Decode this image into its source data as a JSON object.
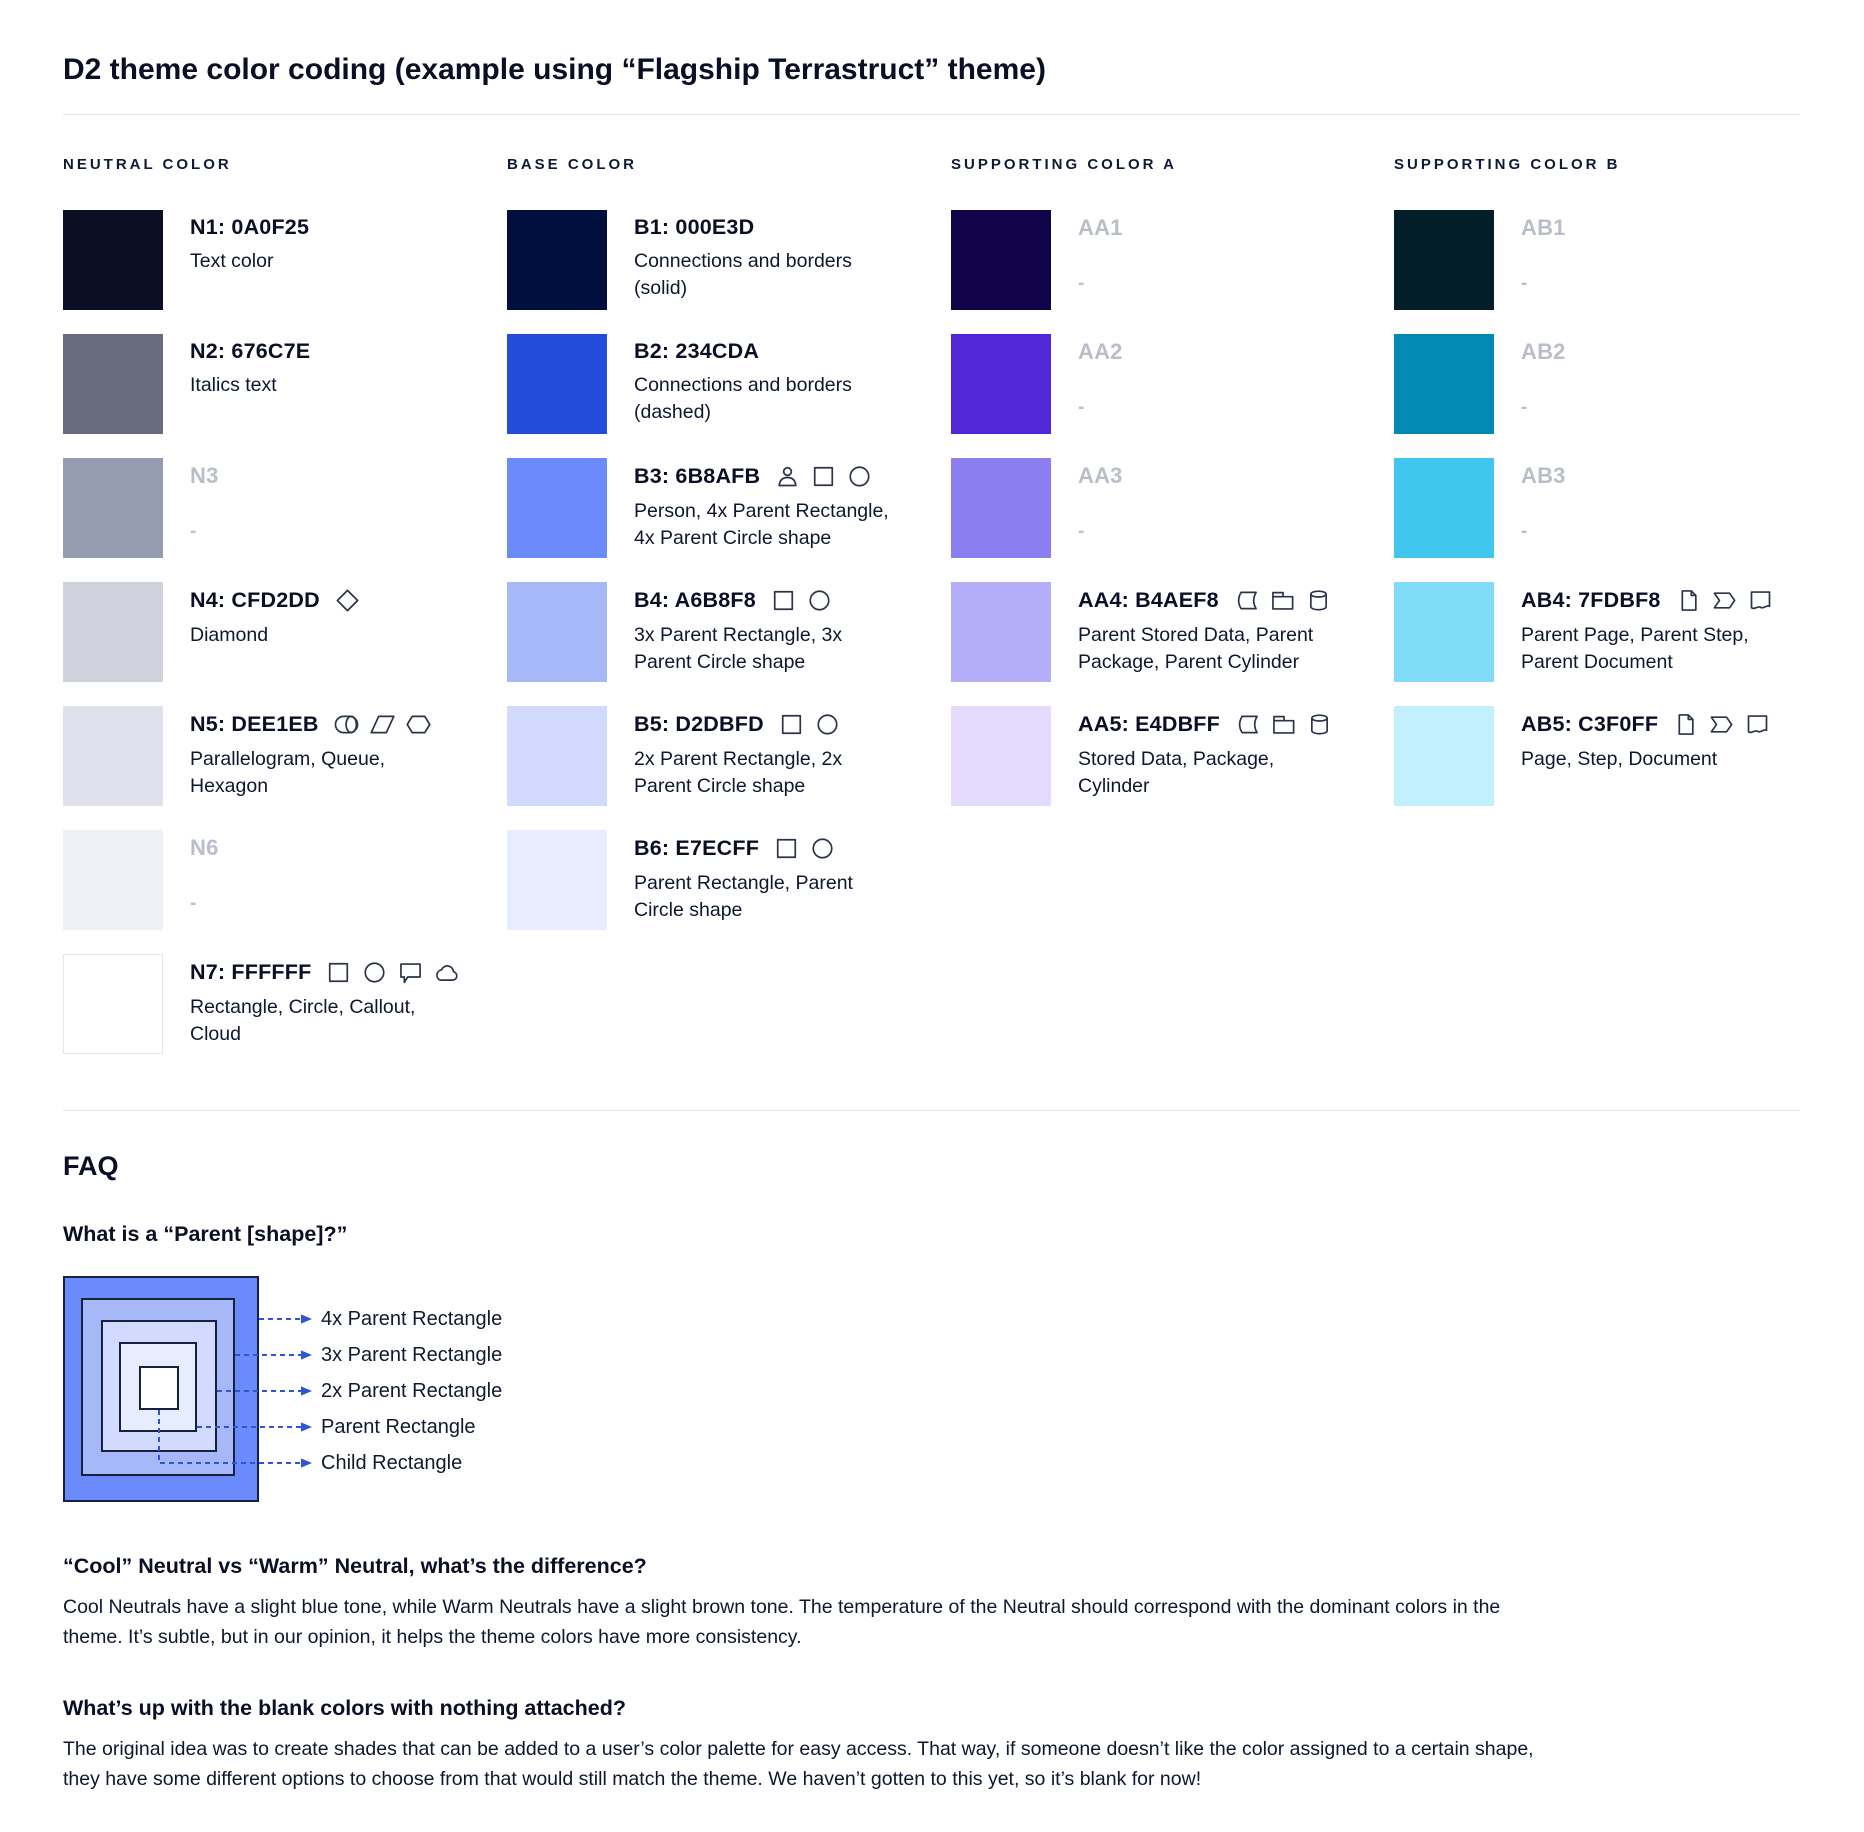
{
  "title": "D2 theme color coding (example using “Flagship Terrastruct” theme)",
  "columns": [
    {
      "header": "NEUTRAL COLOR",
      "rows": [
        {
          "label": "N1: 0A0F25",
          "color": "#0A0F25",
          "desc": "Text color",
          "icons": [],
          "blank": false,
          "bordered": false
        },
        {
          "label": "N2: 676C7E",
          "color": "#676C7E",
          "desc": "Italics text",
          "icons": [],
          "blank": false,
          "bordered": false
        },
        {
          "label": "N3",
          "color": "#969CAF",
          "desc": "-",
          "icons": [],
          "blank": true,
          "bordered": false
        },
        {
          "label": "N4: CFD2DD",
          "color": "#CFD2DD",
          "desc": "Diamond",
          "icons": [
            "diamond"
          ],
          "blank": false,
          "bordered": false
        },
        {
          "label": "N5: DEE1EB",
          "color": "#DEE1EB",
          "desc": "Parallelogram, Queue, Hexagon",
          "icons": [
            "queue",
            "parallelogram",
            "hexagon"
          ],
          "blank": false,
          "bordered": false
        },
        {
          "label": "N6",
          "color": "#EDF0F7",
          "desc": "-",
          "icons": [],
          "blank": true,
          "bordered": false
        },
        {
          "label": "N7: FFFFFF",
          "color": "#FFFFFF",
          "desc": "Rectangle, Circle, Callout, Cloud",
          "icons": [
            "rectangle",
            "circle",
            "callout",
            "cloud"
          ],
          "blank": false,
          "bordered": true
        }
      ]
    },
    {
      "header": "BASE COLOR",
      "rows": [
        {
          "label": "B1: 000E3D",
          "color": "#000E3D",
          "desc": "Connections and borders (solid)",
          "icons": [],
          "blank": false,
          "bordered": false
        },
        {
          "label": "B2: 234CDA",
          "color": "#234CDA",
          "desc": "Connections and borders (dashed)",
          "icons": [],
          "blank": false,
          "bordered": false
        },
        {
          "label": "B3: 6B8AFB",
          "color": "#6B8AFB",
          "desc": "Person, 4x Parent Rectangle, 4x Parent Circle shape",
          "icons": [
            "person",
            "rectangle",
            "circle"
          ],
          "blank": false,
          "bordered": false
        },
        {
          "label": "B4: A6B8F8",
          "color": "#A6B8F8",
          "desc": "3x Parent Rectangle, 3x Parent Circle shape",
          "icons": [
            "rectangle",
            "circle"
          ],
          "blank": false,
          "bordered": false
        },
        {
          "label": "B5: D2DBFD",
          "color": "#D2DBFD",
          "desc": "2x Parent Rectangle, 2x Parent Circle shape",
          "icons": [
            "rectangle",
            "circle"
          ],
          "blank": false,
          "bordered": false
        },
        {
          "label": "B6: E7ECFF",
          "color": "#E7ECFF",
          "desc": "Parent Rectangle, Parent Circle shape",
          "icons": [
            "rectangle",
            "circle"
          ],
          "blank": false,
          "bordered": false
        }
      ]
    },
    {
      "header": "SUPPORTING COLOR A",
      "rows": [
        {
          "label": "AA1",
          "color": "#110349",
          "desc": "-",
          "icons": [],
          "blank": true,
          "bordered": false
        },
        {
          "label": "AA2",
          "color": "#5227D8",
          "desc": "-",
          "icons": [],
          "blank": true,
          "bordered": false
        },
        {
          "label": "AA3",
          "color": "#8A7EF0",
          "desc": "-",
          "icons": [],
          "blank": true,
          "bordered": false
        },
        {
          "label": "AA4: B4AEF8",
          "color": "#B4AEF8",
          "desc": "Parent Stored Data, Parent Package,  Parent Cylinder",
          "icons": [
            "stored-data",
            "package",
            "cylinder"
          ],
          "blank": false,
          "bordered": false
        },
        {
          "label": "AA5: E4DBFF",
          "color": "#E4DBFF",
          "desc": "Stored Data, Package, Cylinder",
          "icons": [
            "stored-data",
            "package",
            "cylinder"
          ],
          "blank": false,
          "bordered": false
        }
      ]
    },
    {
      "header": "SUPPORTING COLOR B",
      "rows": [
        {
          "label": "AB1",
          "color": "#021E29",
          "desc": "-",
          "icons": [],
          "blank": true,
          "bordered": false
        },
        {
          "label": "AB2",
          "color": "#0289B4",
          "desc": "-",
          "icons": [],
          "blank": true,
          "bordered": false
        },
        {
          "label": "AB3",
          "color": "#40C7F0",
          "desc": "-",
          "icons": [],
          "blank": true,
          "bordered": false
        },
        {
          "label": "AB4: 7FDBF8",
          "color": "#7FDBF8",
          "desc": "Parent Page, Parent Step, Parent Document",
          "icons": [
            "page",
            "step",
            "document"
          ],
          "blank": false,
          "bordered": false
        },
        {
          "label": "AB5: C3F0FF",
          "color": "#C3F0FF",
          "desc": "Page, Step, Document",
          "icons": [
            "page",
            "step",
            "document"
          ],
          "blank": false,
          "bordered": false
        }
      ]
    }
  ],
  "faq": {
    "heading": "FAQ",
    "q1": "What is a “Parent [shape]?”",
    "diagram": {
      "labels": [
        "4x Parent Rectangle",
        "3x Parent Rectangle",
        "2x Parent Rectangle",
        "Parent Rectangle",
        "Child Rectangle"
      ],
      "square_colors": [
        "#6B8AFB",
        "#A6B8F8",
        "#D2DBFD",
        "#E7ECFF",
        "#FFFFFF"
      ],
      "arrow_color": "#2E56D4"
    },
    "q2": "“Cool” Neutral vs “Warm” Neutral, what’s the difference?",
    "a2": "Cool Neutrals have a slight blue tone, while Warm Neutrals have a slight brown tone. The temperature of the Neutral should correspond with the dominant colors in the theme. It’s subtle, but in our opinion, it helps the theme colors have more consistency.",
    "q3": "What’s up with the blank colors with nothing attached?",
    "a3": "The original idea was to create shades that can be added to a user’s color palette for easy access. That way, if someone doesn’t like the color assigned to a certain shape, they have some different options to choose from that would still match the theme. We haven’t gotten to this yet, so it’s blank for now!"
  }
}
